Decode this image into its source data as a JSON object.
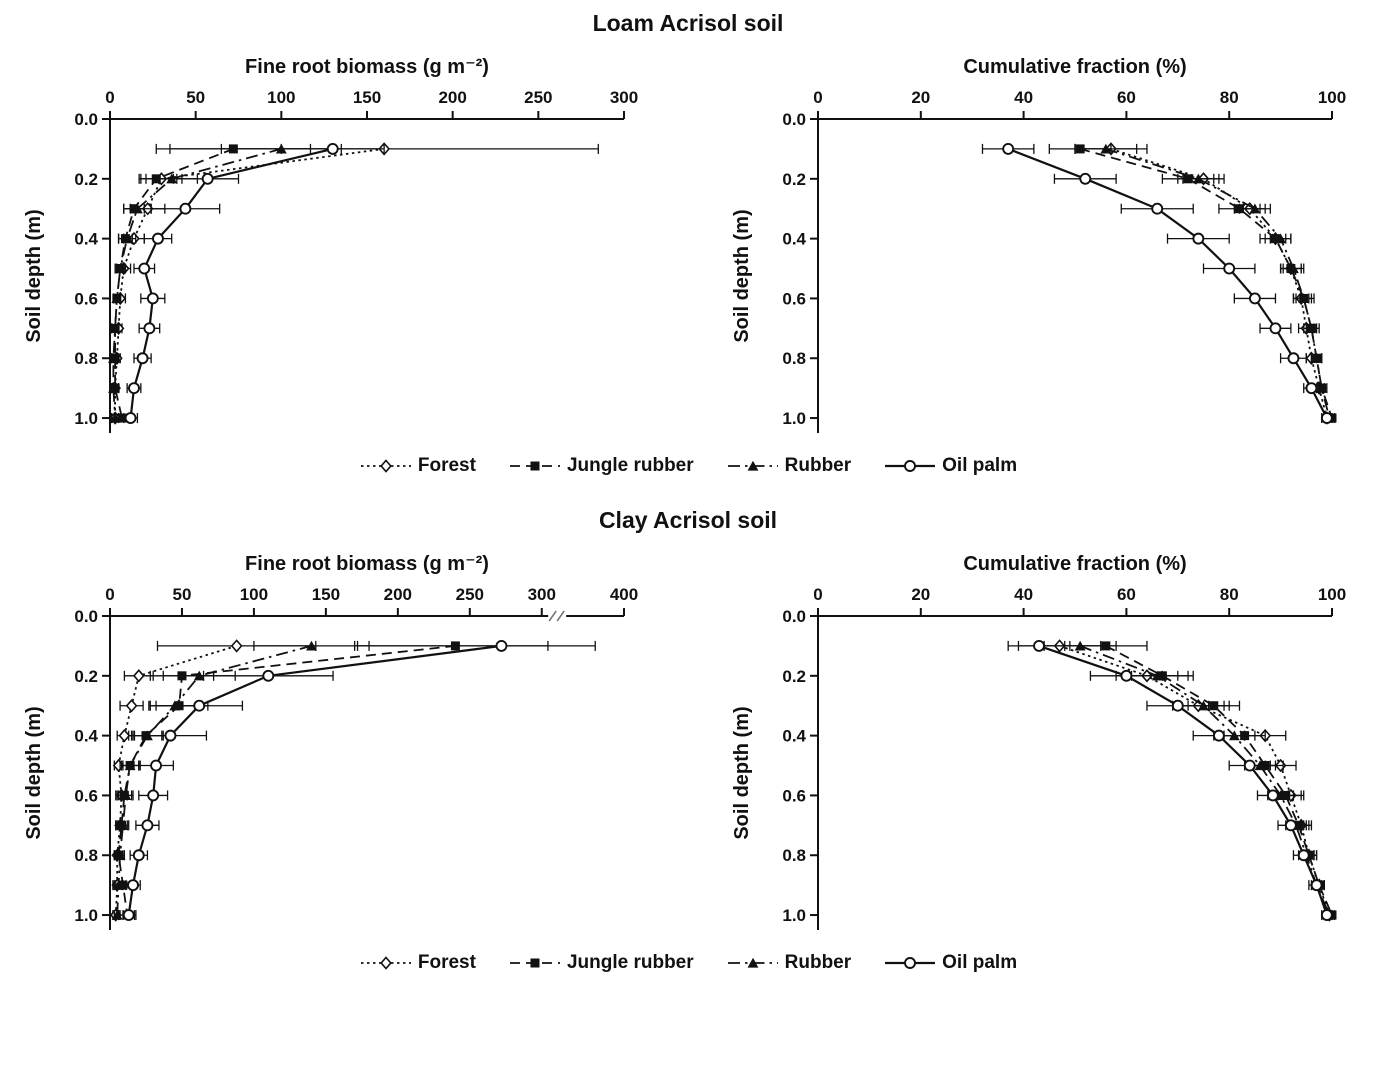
{
  "section_titles": [
    "Loam Acrisol soil",
    "Clay Acrisol soil"
  ],
  "legend": {
    "items": [
      {
        "label": "Forest",
        "marker": "diamond-open",
        "line": "dotted"
      },
      {
        "label": "Jungle rubber",
        "marker": "square-filled",
        "line": "dashed"
      },
      {
        "label": "Rubber",
        "marker": "triangle-filled",
        "line": "dashdot"
      },
      {
        "label": "Oil palm",
        "marker": "circle-open",
        "line": "solid"
      }
    ]
  },
  "ink_color": "#111111",
  "chart_data": [
    {
      "id": "loam-biomass",
      "type": "line",
      "profile": "soil-depth",
      "xlabel": "Fine root biomass (g m⁻²)",
      "ylabel": "Soil depth (m)",
      "xlim": [
        0,
        300
      ],
      "xticks": [
        0,
        50,
        100,
        150,
        200,
        250,
        300
      ],
      "ylim": [
        0,
        1.0
      ],
      "yticks": [
        0,
        0.2,
        0.4,
        0.6,
        0.8,
        1.0
      ],
      "depths": [
        0.1,
        0.2,
        0.3,
        0.4,
        0.5,
        0.6,
        0.7,
        0.8,
        0.9,
        1.0
      ],
      "series": [
        {
          "name": "Forest",
          "marker": "diamond-open",
          "line": "dotted",
          "values": [
            160,
            30,
            22,
            14,
            8,
            6,
            5,
            4,
            3,
            3
          ],
          "errors": [
            125,
            12,
            10,
            6,
            4,
            3,
            2,
            2,
            2,
            2
          ]
        },
        {
          "name": "Jungle rubber",
          "marker": "square-filled",
          "line": "dashed",
          "values": [
            72,
            27,
            14,
            9,
            6,
            4,
            3,
            3,
            3,
            7
          ],
          "errors": [
            45,
            10,
            6,
            4,
            3,
            2,
            2,
            2,
            2,
            6
          ]
        },
        {
          "name": "Rubber",
          "marker": "triangle-filled",
          "line": "dashdot",
          "values": [
            100,
            36,
            16,
            10,
            6,
            4,
            3,
            2,
            2,
            3
          ],
          "errors": [
            35,
            15,
            8,
            5,
            3,
            2,
            2,
            1,
            1,
            2
          ]
        },
        {
          "name": "Oil palm",
          "marker": "circle-open",
          "line": "solid",
          "values": [
            130,
            57,
            44,
            28,
            20,
            25,
            23,
            19,
            14,
            12
          ],
          "errors": [
            30,
            18,
            20,
            8,
            6,
            7,
            6,
            5,
            4,
            4
          ]
        }
      ]
    },
    {
      "id": "loam-cumulative",
      "type": "line",
      "profile": "soil-depth",
      "xlabel": "Cumulative fraction (%)",
      "ylabel": "Soil depth (m)",
      "xlim": [
        0,
        100
      ],
      "xticks": [
        0,
        20,
        40,
        60,
        80,
        100
      ],
      "ylim": [
        0,
        1.0
      ],
      "yticks": [
        0,
        0.2,
        0.4,
        0.6,
        0.8,
        1.0
      ],
      "depths": [
        0.1,
        0.2,
        0.3,
        0.4,
        0.5,
        0.6,
        0.7,
        0.8,
        0.9,
        1.0
      ],
      "series": [
        {
          "name": "Forest",
          "marker": "diamond-open",
          "line": "dotted",
          "values": [
            57,
            75,
            84,
            89,
            92,
            94,
            95,
            96,
            97.5,
            99
          ],
          "errors": [
            7,
            4,
            3,
            2,
            2,
            1.5,
            1.5,
            1,
            1,
            0.5
          ]
        },
        {
          "name": "Jungle rubber",
          "marker": "square-filled",
          "line": "dashed",
          "values": [
            51,
            72,
            82,
            89,
            92,
            94.5,
            96,
            97,
            98,
            100
          ],
          "errors": [
            6,
            5,
            4,
            3,
            2,
            2,
            1.5,
            1,
            1,
            0.5
          ]
        },
        {
          "name": "Rubber",
          "marker": "triangle-filled",
          "line": "dashdot",
          "values": [
            56,
            74,
            85,
            90,
            92.5,
            94.5,
            96,
            97,
            98,
            99.5
          ],
          "errors": [
            6,
            4,
            3,
            2,
            2,
            1.5,
            1,
            1,
            0.5,
            0.5
          ]
        },
        {
          "name": "Oil palm",
          "marker": "circle-open",
          "line": "solid",
          "values": [
            37,
            52,
            66,
            74,
            80,
            85,
            89,
            92.5,
            96,
            99
          ],
          "errors": [
            5,
            6,
            7,
            6,
            5,
            4,
            3,
            2.5,
            1.5,
            1
          ]
        }
      ]
    },
    {
      "id": "clay-biomass",
      "type": "line",
      "profile": "soil-depth",
      "xlabel": "Fine root biomass (g m⁻²)",
      "ylabel": "Soil depth (m)",
      "xlim": [
        0,
        400
      ],
      "xticks": [
        0,
        50,
        100,
        150,
        200,
        250,
        300,
        400
      ],
      "x_break": {
        "start": 300,
        "end": 350,
        "frac_start": 0.84,
        "frac_end": 0.9
      },
      "ylim": [
        0,
        1.0
      ],
      "yticks": [
        0,
        0.2,
        0.4,
        0.6,
        0.8,
        1.0
      ],
      "depths": [
        0.1,
        0.2,
        0.3,
        0.4,
        0.5,
        0.6,
        0.7,
        0.8,
        0.9,
        1.0
      ],
      "series": [
        {
          "name": "Forest",
          "marker": "diamond-open",
          "line": "dotted",
          "values": [
            88,
            20,
            15,
            10,
            6,
            8,
            7,
            5,
            5,
            4
          ],
          "errors": [
            55,
            10,
            8,
            5,
            3,
            4,
            3,
            2,
            3,
            2
          ]
        },
        {
          "name": "Jungle rubber",
          "marker": "square-filled",
          "line": "dashed",
          "values": [
            240,
            50,
            48,
            25,
            14,
            10,
            8,
            6,
            9,
            12
          ],
          "errors": [
            70,
            22,
            20,
            12,
            7,
            5,
            4,
            3,
            5,
            6
          ]
        },
        {
          "name": "Rubber",
          "marker": "triangle-filled",
          "line": "dashdot",
          "values": [
            140,
            62,
            45,
            26,
            14,
            11,
            9,
            7,
            6,
            5
          ],
          "errors": [
            40,
            25,
            18,
            10,
            6,
            5,
            4,
            3,
            3,
            2
          ]
        },
        {
          "name": "Oil palm",
          "marker": "circle-open",
          "line": "solid",
          "values": [
            272,
            110,
            62,
            42,
            32,
            30,
            26,
            20,
            16,
            13
          ],
          "errors": [
            100,
            45,
            30,
            25,
            12,
            10,
            8,
            6,
            5,
            4
          ]
        }
      ]
    },
    {
      "id": "clay-cumulative",
      "type": "line",
      "profile": "soil-depth",
      "xlabel": "Cumulative fraction (%)",
      "ylabel": "Soil depth (m)",
      "xlim": [
        0,
        100
      ],
      "xticks": [
        0,
        20,
        40,
        60,
        80,
        100
      ],
      "ylim": [
        0,
        1.0
      ],
      "yticks": [
        0,
        0.2,
        0.4,
        0.6,
        0.8,
        1.0
      ],
      "depths": [
        0.1,
        0.2,
        0.3,
        0.4,
        0.5,
        0.6,
        0.7,
        0.8,
        0.9,
        1.0
      ],
      "series": [
        {
          "name": "Forest",
          "marker": "diamond-open",
          "line": "dotted",
          "values": [
            47,
            64,
            74,
            87,
            90,
            92,
            94,
            95.5,
            97.5,
            99.5
          ],
          "errors": [
            8,
            6,
            5,
            4,
            3,
            2.5,
            2,
            1.5,
            1,
            0.5
          ]
        },
        {
          "name": "Jungle rubber",
          "marker": "square-filled",
          "line": "dashed",
          "values": [
            56,
            67,
            77,
            83,
            87,
            91,
            93.5,
            95.5,
            97.5,
            100
          ],
          "errors": [
            8,
            6,
            5,
            4,
            3.5,
            3,
            2,
            1.5,
            1,
            0.5
          ]
        },
        {
          "name": "Rubber",
          "marker": "triangle-filled",
          "line": "dashdot",
          "values": [
            51,
            66,
            75,
            81,
            86,
            90,
            93,
            95,
            97,
            99.5
          ],
          "errors": [
            7,
            6,
            5,
            4,
            3,
            2.5,
            2,
            1.5,
            1,
            0.5
          ]
        },
        {
          "name": "Oil palm",
          "marker": "circle-open",
          "line": "solid",
          "values": [
            43,
            60,
            70,
            78,
            84,
            88.5,
            92,
            94.5,
            97,
            99
          ],
          "errors": [
            6,
            7,
            6,
            5,
            4,
            3,
            2.5,
            2,
            1.5,
            1
          ]
        }
      ]
    }
  ]
}
